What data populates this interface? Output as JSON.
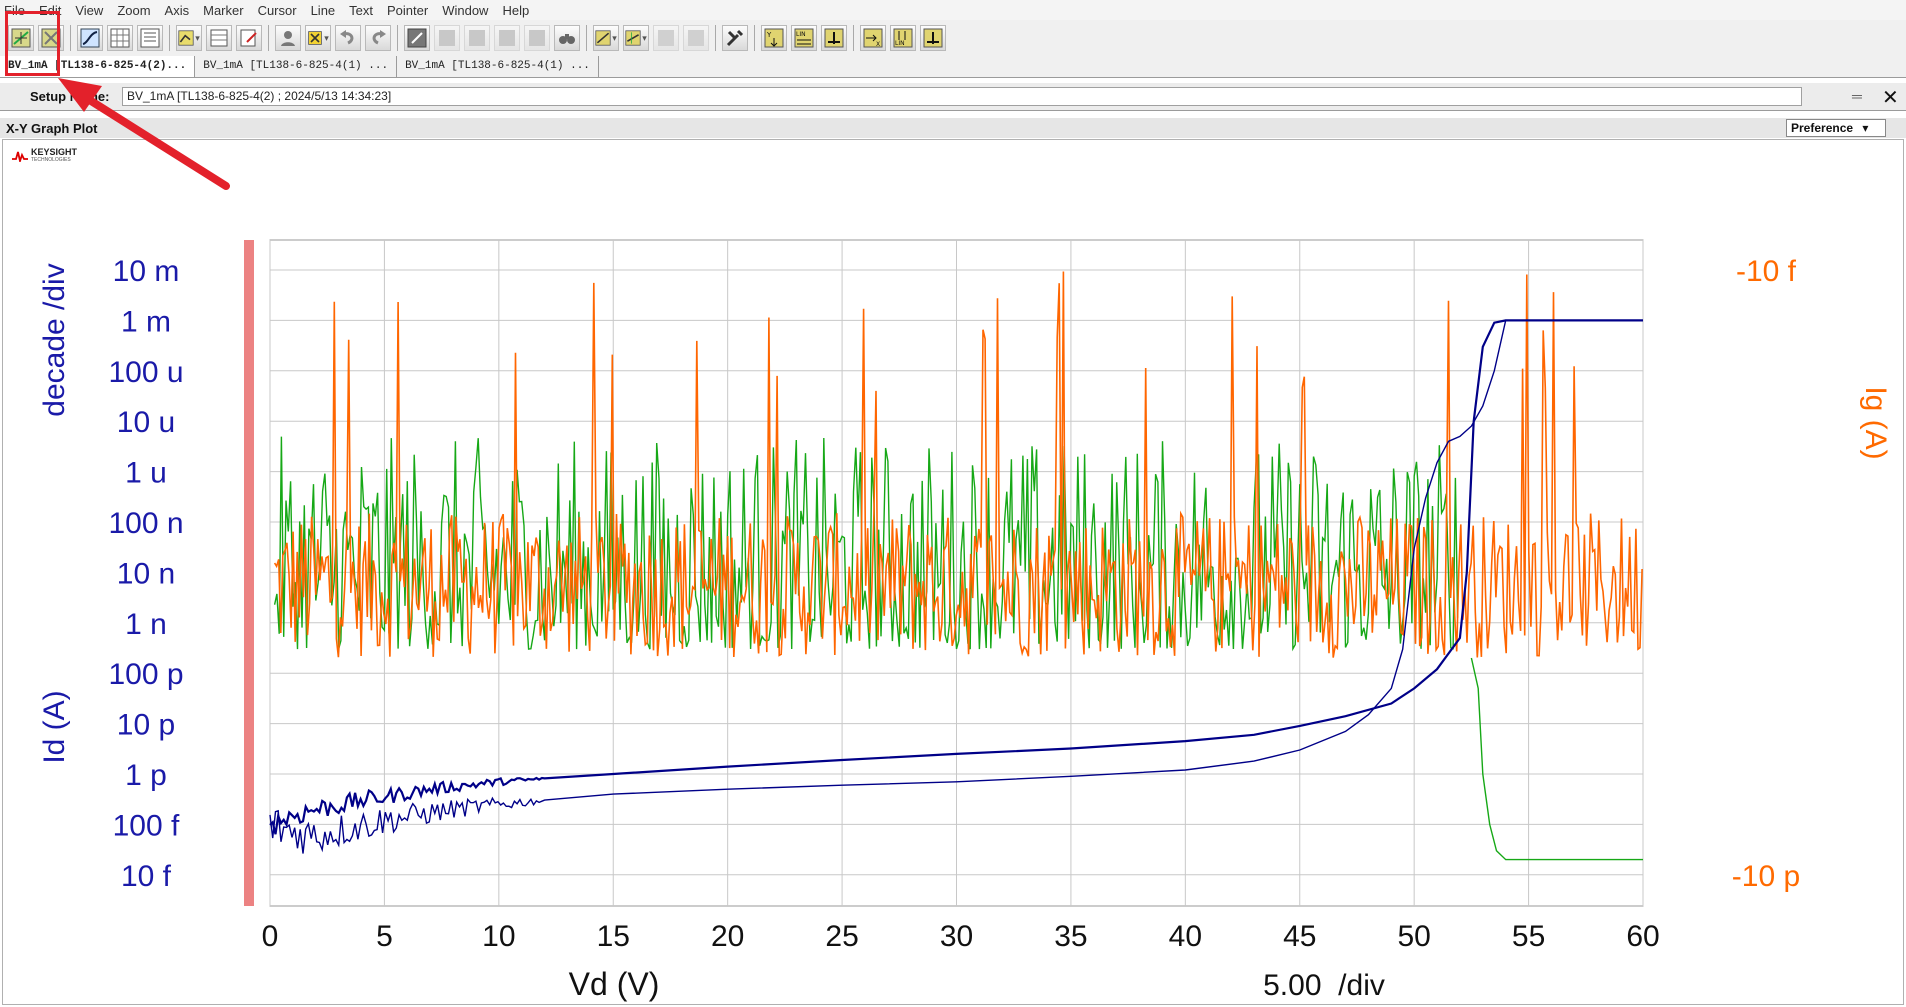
{
  "menu": [
    "File",
    "Edit",
    "View",
    "Zoom",
    "Axis",
    "Marker",
    "Cursor",
    "Line",
    "Text",
    "Pointer",
    "Window",
    "Help"
  ],
  "tabs": [
    {
      "label": "BV_1mA [TL138-6-825-4(2)...",
      "active": true
    },
    {
      "label": "BV_1mA [TL138-6-825-4(1) ...",
      "active": false
    },
    {
      "label": "BV_1mA [TL138-6-825-4(1) ...",
      "active": false
    }
  ],
  "setup": {
    "label": "Setup Name:",
    "value": "BV_1mA [TL138-6-825-4(2) ; 2024/5/13 14:34:23]"
  },
  "panel": {
    "title": "X-Y Graph Plot",
    "preference_label": "Preference",
    "logo_name": "KEYSIGHT",
    "logo_sub": "TECHNOLOGIES"
  },
  "colors": {
    "id_trace": "#000088",
    "ig_trace": "#ff6600",
    "green_trace": "#16a816",
    "left_axis_text": "#1a1aa8",
    "right_axis_text": "#ff6a00",
    "cursor_bar": "#ec8282",
    "annotation": "#e3212b"
  },
  "chart_data": {
    "type": "line",
    "xlabel": "Vd (V)",
    "x_div_label": "5.00  /div",
    "y_left_label": "Id (A)",
    "y_left_scale_label": "decade /div",
    "y_right_label": "Ig (A)",
    "x_ticks": [
      "0",
      "5",
      "10",
      "15",
      "20",
      "25",
      "30",
      "35",
      "40",
      "45",
      "50",
      "55",
      "60"
    ],
    "xlim": [
      0,
      60
    ],
    "y_left_ticks": [
      "10 m",
      "1 m",
      "100 u",
      "10 u",
      "1 u",
      "100 n",
      "10 n",
      "1 n",
      "100 p",
      "10 p",
      "1 p",
      "100 f",
      "10 f"
    ],
    "y_left_range_A": [
      1e-14,
      0.01
    ],
    "y_left_scale": "log",
    "y_right_ticks": [
      "-10 f",
      "-10 p"
    ],
    "y_right_range_A": [
      -1e-14,
      -1e-11
    ],
    "grid": true,
    "series": [
      {
        "role": "id_forward",
        "color_key": "id_trace",
        "x": [
          0,
          1,
          2,
          3,
          4,
          5,
          7,
          10,
          15,
          20,
          25,
          30,
          35,
          40,
          43,
          45,
          47,
          49,
          50,
          51,
          52,
          52.3,
          52.6,
          53,
          53.5,
          54,
          60
        ],
        "y": [
          1e-13,
          1.5e-13,
          2e-13,
          2.4e-13,
          3e-13,
          3.5e-13,
          5e-13,
          7e-13,
          1e-12,
          1.4e-12,
          1.9e-12,
          2.5e-12,
          3.2e-12,
          4.5e-12,
          6e-12,
          9e-12,
          1.4e-11,
          2.5e-11,
          5e-11,
          1.2e-10,
          5e-10,
          1e-08,
          1e-05,
          0.0003,
          0.0009,
          0.001,
          0.001
        ]
      },
      {
        "role": "id_return",
        "color_key": "id_trace",
        "x": [
          0,
          1,
          2,
          5,
          8,
          10,
          15,
          20,
          25,
          30,
          35,
          40,
          43,
          45,
          47,
          48,
          49,
          49.5,
          50,
          50.5,
          51,
          51.5,
          52,
          52.5,
          53,
          53.5,
          54
        ],
        "y": [
          1e-13,
          7e-14,
          6e-14,
          1.2e-13,
          2e-13,
          2.5e-13,
          4e-13,
          5e-13,
          6e-13,
          7e-13,
          9e-13,
          1.2e-12,
          1.8e-12,
          3e-12,
          7e-12,
          1.5e-11,
          5e-11,
          3e-10,
          3e-08,
          3e-07,
          1.5e-06,
          4e-06,
          5e-06,
          8e-06,
          2e-05,
          0.0001,
          0.001
        ]
      },
      {
        "role": "green_noise_tail",
        "color_key": "green_trace",
        "x": [
          52.5,
          52.8,
          53,
          53.3,
          53.6,
          54,
          55,
          60
        ],
        "y": [
          2e-10,
          5e-11,
          1e-12,
          1e-13,
          3e-14,
          2e-14,
          2e-14,
          2e-14
        ]
      }
    ],
    "noise_bands": [
      {
        "role": "ig_noise",
        "color_key": "ig_trace",
        "x_range": [
          0.2,
          60
        ],
        "y_range": [
          2e-10,
          0.01
        ],
        "spike_top": 0.01
      },
      {
        "role": "green_noise",
        "color_key": "green_trace",
        "x_range": [
          0.2,
          52
        ],
        "y_range": [
          3e-10,
          5e-06
        ]
      }
    ]
  }
}
